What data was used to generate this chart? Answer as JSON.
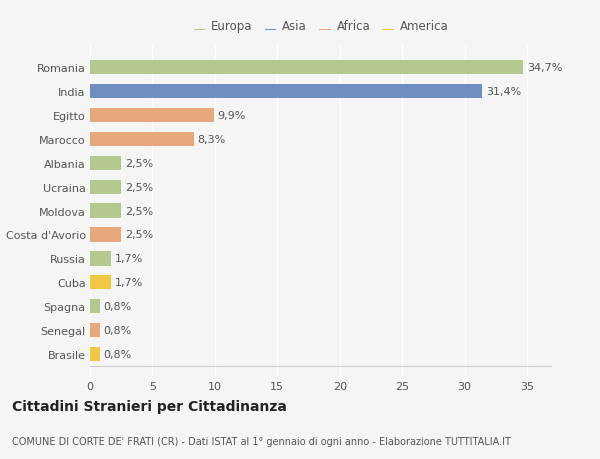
{
  "countries": [
    "Romania",
    "India",
    "Egitto",
    "Marocco",
    "Albania",
    "Ucraina",
    "Moldova",
    "Costa d'Avorio",
    "Russia",
    "Cuba",
    "Spagna",
    "Senegal",
    "Brasile"
  ],
  "values": [
    34.7,
    31.4,
    9.9,
    8.3,
    2.5,
    2.5,
    2.5,
    2.5,
    1.7,
    1.7,
    0.8,
    0.8,
    0.8
  ],
  "labels": [
    "34,7%",
    "31,4%",
    "9,9%",
    "8,3%",
    "2,5%",
    "2,5%",
    "2,5%",
    "2,5%",
    "1,7%",
    "1,7%",
    "0,8%",
    "0,8%",
    "0,8%"
  ],
  "colors": [
    "#b5c98e",
    "#6e8ebf",
    "#e8a87c",
    "#e8a87c",
    "#b5c98e",
    "#b5c98e",
    "#b5c98e",
    "#e8a87c",
    "#b5c98e",
    "#f0c842",
    "#b5c98e",
    "#e8a87c",
    "#f0c842"
  ],
  "legend_labels": [
    "Europa",
    "Asia",
    "Africa",
    "America"
  ],
  "legend_colors": [
    "#b5c98e",
    "#6e8ebf",
    "#e8a87c",
    "#f0c842"
  ],
  "xlim": [
    0,
    37
  ],
  "xticks": [
    0,
    5,
    10,
    15,
    20,
    25,
    30,
    35
  ],
  "title": "Cittadini Stranieri per Cittadinanza",
  "subtitle": "COMUNE DI CORTE DE' FRATI (CR) - Dati ISTAT al 1° gennaio di ogni anno - Elaborazione TUTTITALIA.IT",
  "bg_color": "#f5f5f5",
  "plot_bg_color": "#f5f5f5",
  "grid_color": "#ffffff",
  "bar_height": 0.6,
  "label_fontsize": 8,
  "tick_fontsize": 8,
  "title_fontsize": 10,
  "subtitle_fontsize": 7,
  "legend_fontsize": 8.5
}
